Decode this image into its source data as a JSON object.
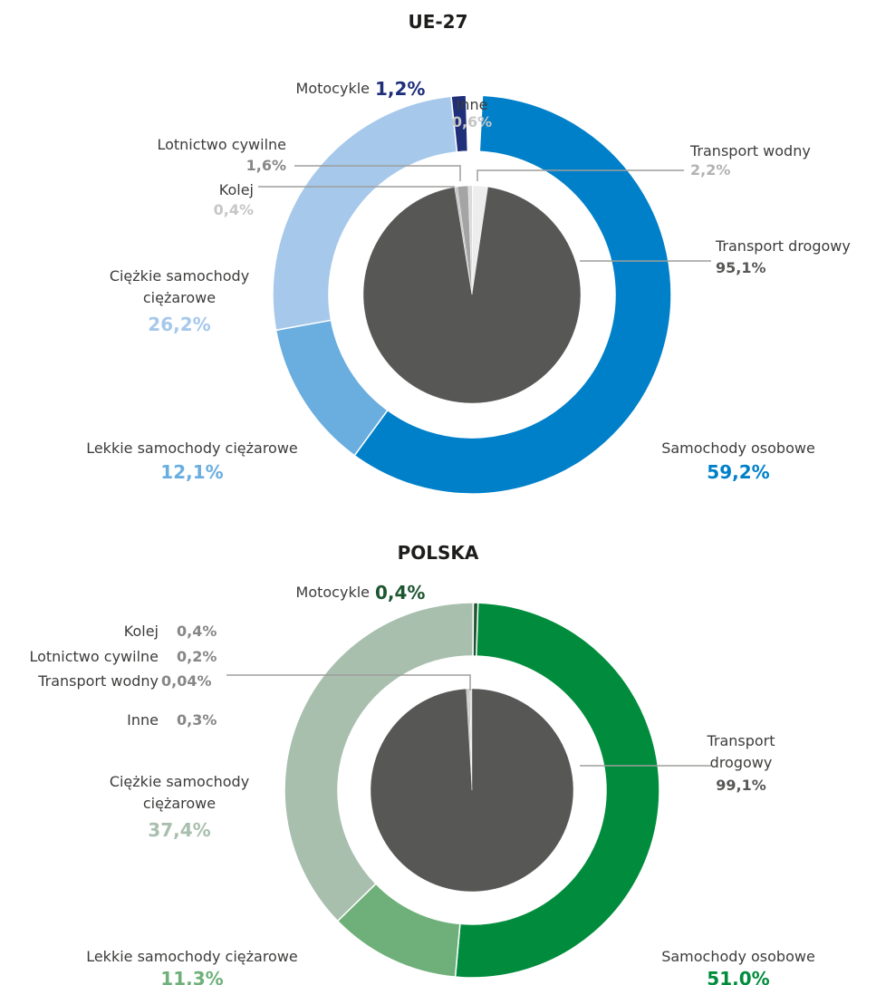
{
  "chart_data": [
    {
      "type": "nested-pie",
      "title": "UE-27",
      "outer": {
        "categories": [
          "Samochody osobowe",
          "Lekkie samochody ciężarowe",
          "Ciężkie samochody ciężarowe",
          "Motocykle"
        ],
        "values": [
          59.2,
          12.1,
          26.2,
          1.2
        ],
        "value_labels": [
          "59,2%",
          "12,1%",
          "26,2%",
          "1,2%"
        ],
        "colors": [
          "#0080c9",
          "#6aaee0",
          "#a6c8ea",
          "#1f2f7a"
        ]
      },
      "inner": {
        "categories": [
          "Transport wodny",
          "Transport drogowy",
          "Kolej",
          "Lotnictwo cywilne",
          "Inne"
        ],
        "values": [
          2.2,
          95.1,
          0.4,
          1.6,
          0.6
        ],
        "value_labels": [
          "2,2%",
          "95,1%",
          "0,4%",
          "1,6%",
          "0,6%"
        ],
        "colors": [
          "#ededed",
          "#575756",
          "#c6c6c6",
          "#a4a4a4",
          "#dadada"
        ]
      }
    },
    {
      "type": "nested-pie",
      "title": "POLSKA",
      "outer": {
        "categories": [
          "Samochody osobowe",
          "Lekkie samochody ciężarowe",
          "Ciężkie samochody ciężarowe",
          "Motocykle"
        ],
        "values": [
          51.0,
          11.3,
          37.4,
          0.4
        ],
        "value_labels": [
          "51,0%",
          "11,3%",
          "37,4%",
          "0,4%"
        ],
        "colors": [
          "#008c3c",
          "#6fb07a",
          "#a9bfae",
          "#1e5631"
        ]
      },
      "inner": {
        "categories": [
          "Kolej",
          "Lotnictwo cywilne",
          "Transport wodny",
          "Inne",
          "Transport drogowy"
        ],
        "values": [
          0.4,
          0.2,
          0.04,
          0.3,
          99.1
        ],
        "value_labels": [
          "0,4%",
          "0,2%",
          "0,04%",
          "0,3%",
          "99,1%"
        ],
        "colors": [
          "#c6c6c6",
          "#a4a4a4",
          "#ededed",
          "#dadada",
          "#575756"
        ]
      }
    }
  ]
}
